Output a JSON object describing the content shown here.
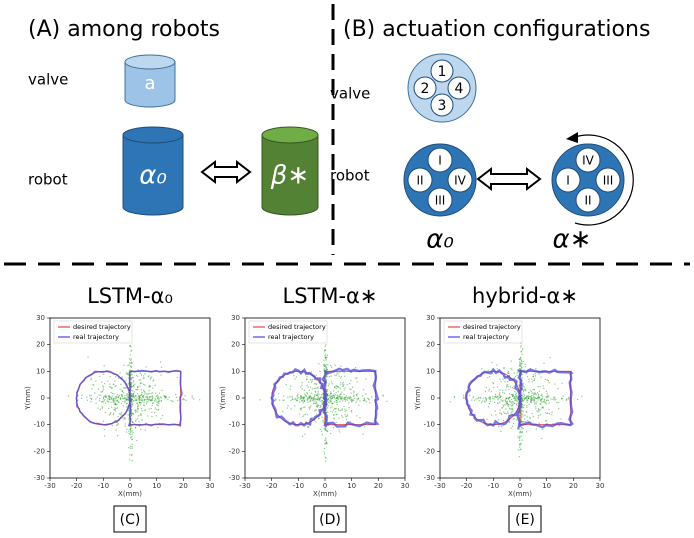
{
  "panel_a": {
    "title": "(A) among robots",
    "valve_label": "valve",
    "valve_text": "a",
    "robot_label": "robot",
    "robot_left": "α₀",
    "robot_right": "β∗"
  },
  "panel_b": {
    "title": "(B) actuation configurations",
    "valve_label": "valve",
    "valve_ports": [
      "1",
      "2",
      "4",
      "3"
    ],
    "robot_label": "robot",
    "robot_left_ports": [
      "I",
      "II",
      "IV",
      "III"
    ],
    "robot_right_ports": [
      "IV",
      "I",
      "III",
      "II"
    ],
    "robot_left_label": "α₀",
    "robot_right_label": "α∗"
  },
  "plots": [
    {
      "title": "LSTM-α₀",
      "caption": "(C)"
    },
    {
      "title": "LSTM-α∗",
      "caption": "(D)"
    },
    {
      "title": "hybrid-α∗",
      "caption": "(E)"
    }
  ],
  "plot_axes": {
    "legend": [
      "desired trajectory",
      "real trajectory"
    ],
    "xlabel": "X(mm)",
    "ylabel": "Y(mm)",
    "xlim": [
      -30,
      30
    ],
    "ylim": [
      -30,
      30
    ],
    "xticks": [
      -30,
      -20,
      -10,
      0,
      10,
      20,
      30
    ],
    "yticks": [
      -30,
      -20,
      -10,
      0,
      10,
      20,
      30
    ]
  }
}
